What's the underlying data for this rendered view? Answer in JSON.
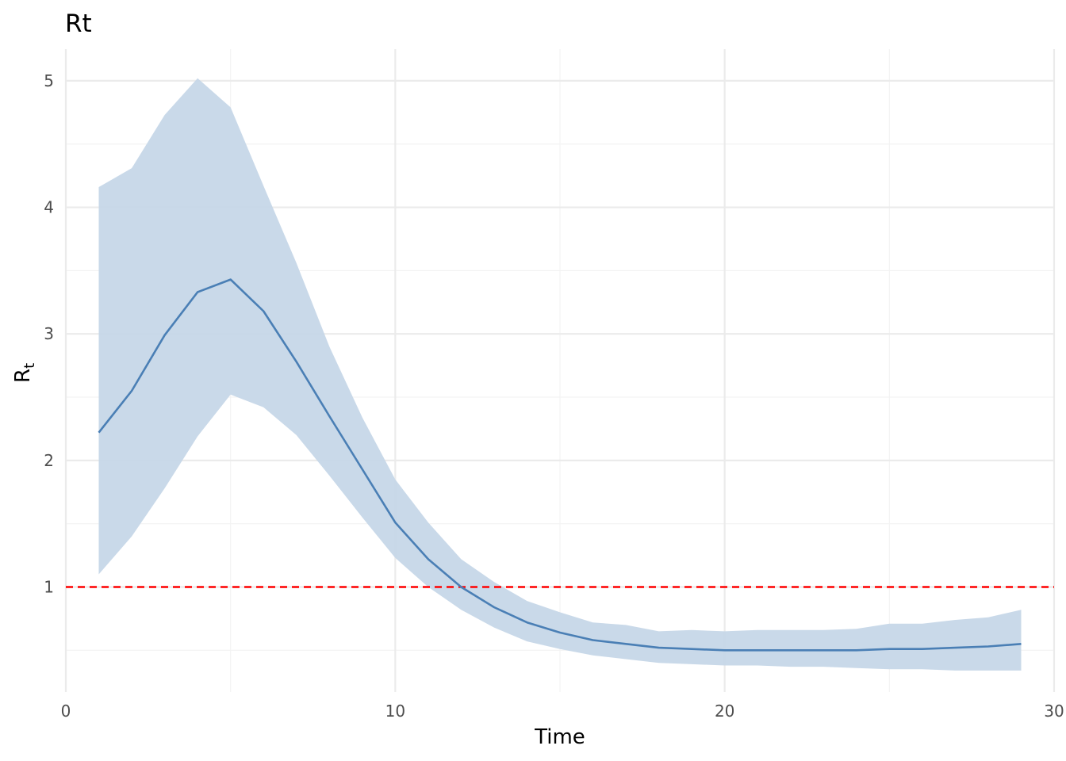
{
  "chart_data": {
    "type": "area",
    "title": "Rt",
    "xlabel": "Time",
    "ylabel_main": "R",
    "ylabel_sub": "t",
    "xlim": [
      0,
      30
    ],
    "ylim": [
      0.17,
      5.25
    ],
    "xticks": [
      0,
      10,
      20,
      30
    ],
    "xtick_labels": [
      "0",
      "10",
      "20",
      "30"
    ],
    "yticks": [
      1,
      2,
      3,
      4,
      5
    ],
    "ytick_labels": [
      "1",
      "2",
      "3",
      "4",
      "5"
    ],
    "x_minor_ticks": [
      5,
      15,
      25
    ],
    "y_minor_ticks": [
      0.5,
      1.5,
      2.5,
      3.5,
      4.5
    ],
    "grid": true,
    "colors": {
      "line": "#4a7fb5",
      "band": "#c6d7e8",
      "reference": "#ff0000",
      "grid_major": "#ebebeb",
      "grid_minor": "#f3f3f3"
    },
    "reference_line": {
      "y": 1,
      "style": "dashed"
    },
    "x": [
      1,
      2,
      3,
      4,
      5,
      6,
      7,
      8,
      9,
      10,
      11,
      12,
      13,
      14,
      15,
      16,
      17,
      18,
      19,
      20,
      21,
      22,
      23,
      24,
      25,
      26,
      27,
      28,
      29
    ],
    "series": [
      {
        "values": [
          2.22,
          2.55,
          2.99,
          3.33,
          3.43,
          3.18,
          2.78,
          2.35,
          1.93,
          1.51,
          1.22,
          1.0,
          0.84,
          0.72,
          0.64,
          0.58,
          0.55,
          0.52,
          0.51,
          0.5,
          0.5,
          0.5,
          0.5,
          0.5,
          0.51,
          0.51,
          0.52,
          0.53,
          0.55
        ]
      }
    ],
    "band": {
      "lower": [
        1.1,
        1.4,
        1.78,
        2.19,
        2.52,
        2.42,
        2.2,
        1.88,
        1.55,
        1.23,
        1.0,
        0.82,
        0.68,
        0.57,
        0.51,
        0.46,
        0.43,
        0.4,
        0.39,
        0.38,
        0.38,
        0.37,
        0.37,
        0.36,
        0.35,
        0.35,
        0.34,
        0.34,
        0.34
      ],
      "upper": [
        4.16,
        4.31,
        4.73,
        5.02,
        4.79,
        4.17,
        3.56,
        2.9,
        2.34,
        1.85,
        1.51,
        1.22,
        1.04,
        0.89,
        0.8,
        0.72,
        0.7,
        0.65,
        0.66,
        0.65,
        0.66,
        0.66,
        0.66,
        0.67,
        0.71,
        0.71,
        0.74,
        0.76,
        0.82
      ]
    }
  }
}
